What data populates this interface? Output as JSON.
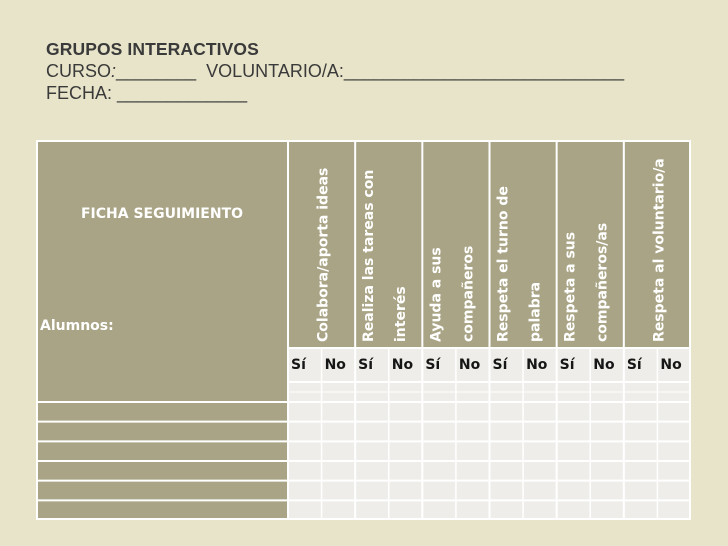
{
  "header": {
    "title": "GRUPOS INTERACTIVOS",
    "curso_label": "CURSO",
    "curso_sep": ":",
    "curso_blank": "________",
    "voluntario_label": "VOLUNTARIO/A:",
    "voluntario_blank": "____________________________",
    "fecha_label": "FECHA:",
    "fecha_blank": "_____________"
  },
  "table": {
    "ficha_label": "FICHA SEGUIMIENTO",
    "alumnos_label": "Alumnos:",
    "criteria": [
      {
        "lines": [
          "Colabora/aporta ideas"
        ]
      },
      {
        "lines": [
          "Realiza las tareas con",
          "interés"
        ]
      },
      {
        "lines": [
          "Ayuda a sus",
          "compañeros"
        ]
      },
      {
        "lines": [
          "Respeta el turno de",
          "palabra"
        ]
      },
      {
        "lines": [
          "Respeta a sus",
          "compañeros/as"
        ]
      },
      {
        "lines": [
          "Respeta al voluntario/a"
        ]
      }
    ],
    "yes_label": "Sí",
    "no_label": "No",
    "student_rows": 6
  },
  "colors": {
    "page_bg": "#e8e4c9",
    "header_fill": "#a9a485",
    "grid_fill": "#eeede9",
    "border": "#ffffff",
    "header_text": "#ffffff"
  }
}
